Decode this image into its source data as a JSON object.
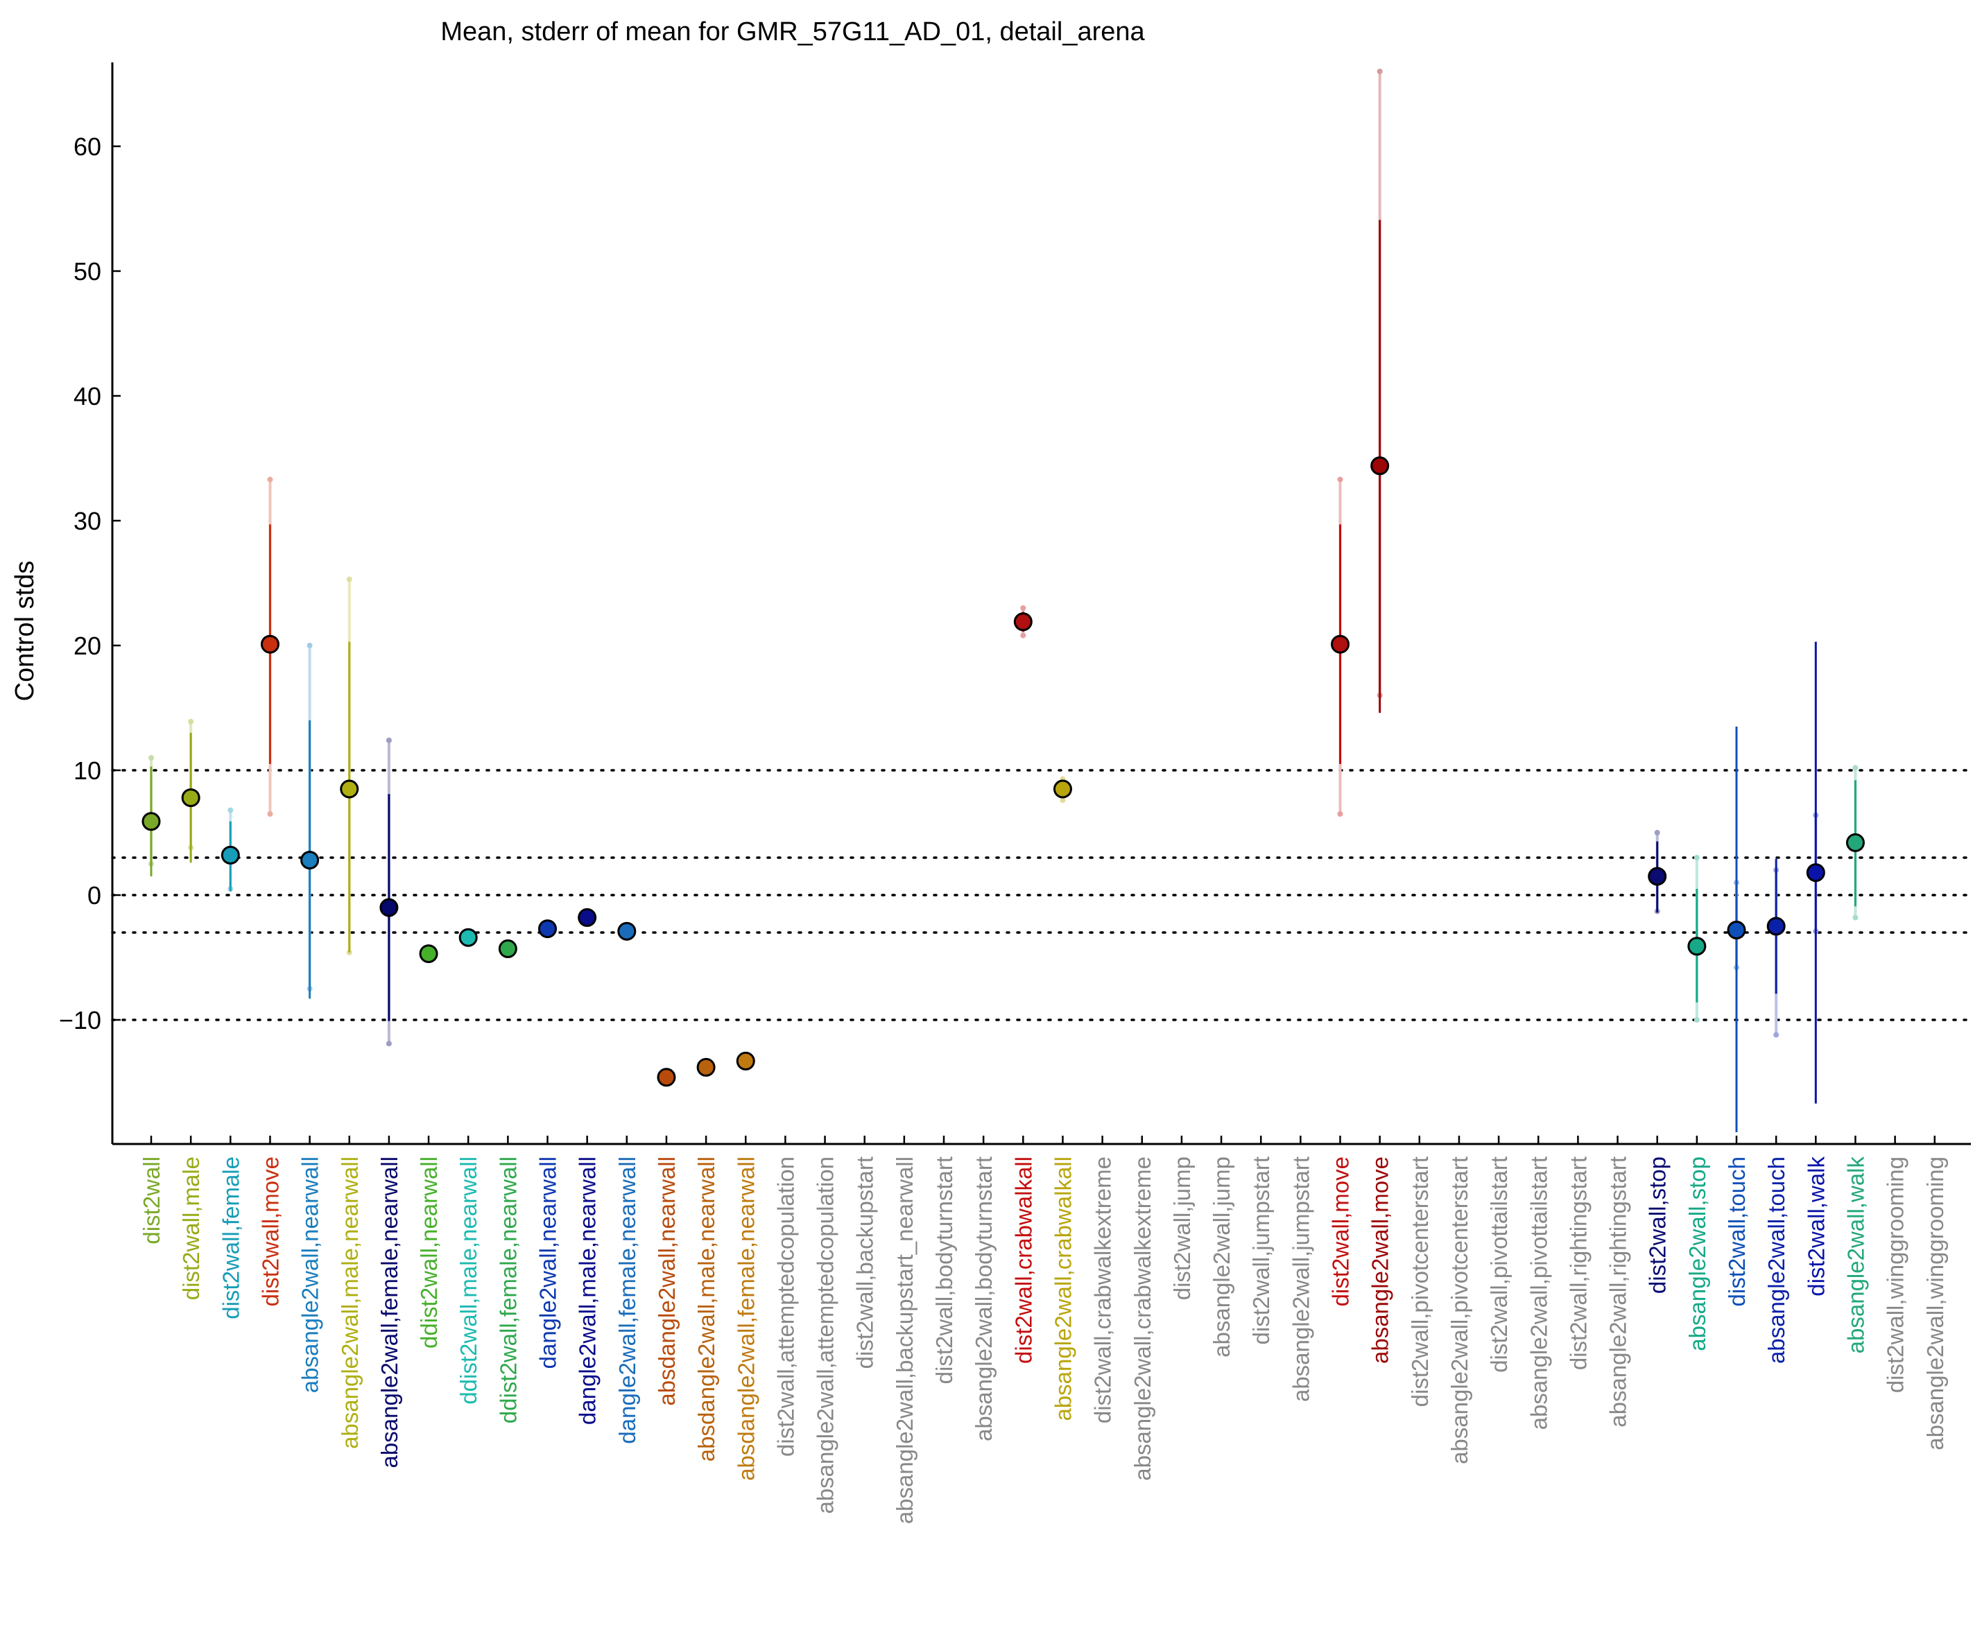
{
  "chart_data": {
    "type": "scatter",
    "title": "Mean, stderr of mean for GMR_57G11_AD_01, detail_arena",
    "xlabel": "",
    "ylabel": "Control stds",
    "ylim": [
      -20,
      67
    ],
    "yticks": [
      -10,
      0,
      10,
      20,
      30,
      40,
      50,
      60
    ],
    "ytick_labels": [
      "−10",
      "0",
      "10",
      "20",
      "30",
      "40",
      "50",
      "60"
    ],
    "reference_lines": [
      -10,
      -3,
      0,
      3,
      10
    ],
    "grid": false,
    "legend": "none",
    "categories": [
      {
        "label": "dist2wall",
        "color": "#7aa828",
        "mean": 5.9,
        "err_lo": 1.5,
        "err_hi": 10.3,
        "range_lo": 2.5,
        "range_hi": 11.0,
        "fill": "#7aa828"
      },
      {
        "label": "dist2wall,male",
        "color": "#99aa17",
        "mean": 7.8,
        "err_lo": 2.6,
        "err_hi": 13.0,
        "range_lo": 3.8,
        "range_hi": 13.9,
        "fill": "#99aa17"
      },
      {
        "label": "dist2wall,female",
        "color": "#179db7",
        "mean": 3.2,
        "err_lo": 0.3,
        "err_hi": 5.9,
        "range_lo": 0.5,
        "range_hi": 6.8,
        "fill": "#179db7"
      },
      {
        "label": "dist2wall,move",
        "color": "#c8300f",
        "mean": 20.1,
        "err_lo": 10.5,
        "err_hi": 29.7,
        "range_lo": 6.5,
        "range_hi": 33.3,
        "fill": "#c8300f"
      },
      {
        "label": "absangle2wall,nearwall",
        "color": "#1a7dbd",
        "mean": 2.8,
        "err_lo": -8.3,
        "err_hi": 14.0,
        "range_lo": -7.5,
        "range_hi": 20.0,
        "fill": "#1a7dbd"
      },
      {
        "label": "absangle2wall,male,nearwall",
        "color": "#afaf12",
        "mean": 8.5,
        "err_lo": -4.6,
        "err_hi": 20.3,
        "range_lo": -4.6,
        "range_hi": 25.3,
        "fill": "#afaf12"
      },
      {
        "label": "absangle2wall,female,nearwall",
        "color": "#07086b",
        "mean": -1.0,
        "err_lo": -10.1,
        "err_hi": 8.1,
        "range_lo": -11.9,
        "range_hi": 12.4,
        "fill": "#07086b"
      },
      {
        "label": "ddist2wall,nearwall",
        "color": "#46b02b",
        "mean": -4.7,
        "err_lo": -4.7,
        "err_hi": -4.7,
        "range_lo": -4.7,
        "range_hi": -4.7,
        "fill": "#46b02b"
      },
      {
        "label": "ddist2wall,male,nearwall",
        "color": "#1cbab0",
        "mean": -3.4,
        "err_lo": -3.4,
        "err_hi": -3.4,
        "range_lo": -3.4,
        "range_hi": -3.4,
        "fill": "#1cbab0"
      },
      {
        "label": "ddist2wall,female,nearwall",
        "color": "#2fa84c",
        "mean": -4.3,
        "err_lo": -4.3,
        "err_hi": -4.3,
        "range_lo": -4.3,
        "range_hi": -4.3,
        "fill": "#2fa84c"
      },
      {
        "label": "dangle2wall,nearwall",
        "color": "#0e38b0",
        "mean": -2.7,
        "err_lo": -2.7,
        "err_hi": -2.7,
        "range_lo": -2.7,
        "range_hi": -2.7,
        "fill": "#0e38b0"
      },
      {
        "label": "dangle2wall,male,nearwall",
        "color": "#0a0c8a",
        "mean": -1.8,
        "err_lo": -1.8,
        "err_hi": -1.8,
        "range_lo": -1.8,
        "range_hi": -1.8,
        "fill": "#0a0c8a"
      },
      {
        "label": "dangle2wall,female,nearwall",
        "color": "#1a6cba",
        "mean": -2.9,
        "err_lo": -2.9,
        "err_hi": -2.9,
        "range_lo": -2.9,
        "range_hi": -2.9,
        "fill": "#1a6cba"
      },
      {
        "label": "absdangle2wall,nearwall",
        "color": "#b84b0c",
        "mean": -14.6,
        "err_lo": -14.6,
        "err_hi": -14.6,
        "range_lo": -14.6,
        "range_hi": -14.6,
        "fill": "#b84b0c"
      },
      {
        "label": "absdangle2wall,male,nearwall",
        "color": "#b8620e",
        "mean": -13.8,
        "err_lo": -13.8,
        "err_hi": -13.8,
        "range_lo": -13.8,
        "range_hi": -13.8,
        "fill": "#b8620e"
      },
      {
        "label": "absdangle2wall,female,nearwall",
        "color": "#bf7b10",
        "mean": -13.3,
        "err_lo": -13.3,
        "err_hi": -13.3,
        "range_lo": -13.3,
        "range_hi": -13.3,
        "fill": "#bf7b10"
      },
      {
        "label": "dist2wall,attemptedcopulation",
        "color": "#888888",
        "mean": null
      },
      {
        "label": "absangle2wall,attemptedcopulation",
        "color": "#888888",
        "mean": null
      },
      {
        "label": "dist2wall,backupstart",
        "color": "#888888",
        "mean": null
      },
      {
        "label": "absangle2wall,backupstart_nearwall",
        "color": "#888888",
        "mean": null
      },
      {
        "label": "dist2wall,bodyturnstart",
        "color": "#888888",
        "mean": null
      },
      {
        "label": "absangle2wall,bodyturnstart",
        "color": "#888888",
        "mean": null
      },
      {
        "label": "dist2wall,crabwalkall",
        "color": "#c40e0e",
        "mean": 21.9,
        "err_lo": 21.1,
        "err_hi": 22.7,
        "range_lo": 20.8,
        "range_hi": 23.0,
        "fill": "#b01010"
      },
      {
        "label": "absangle2wall,crabwalkall",
        "color": "#b8a50c",
        "mean": 8.5,
        "err_lo": 7.9,
        "err_hi": 9.1,
        "range_lo": 7.6,
        "range_hi": 9.3,
        "fill": "#b8a50c"
      },
      {
        "label": "dist2wall,crabwalkextreme",
        "color": "#888888",
        "mean": null
      },
      {
        "label": "absangle2wall,crabwalkextreme",
        "color": "#888888",
        "mean": null
      },
      {
        "label": "dist2wall,jump",
        "color": "#888888",
        "mean": null
      },
      {
        "label": "absangle2wall,jump",
        "color": "#888888",
        "mean": null
      },
      {
        "label": "dist2wall,jumpstart",
        "color": "#888888",
        "mean": null
      },
      {
        "label": "absangle2wall,jumpstart",
        "color": "#888888",
        "mean": null
      },
      {
        "label": "dist2wall,move",
        "color": "#c40e0e",
        "mean": 20.1,
        "err_lo": 10.5,
        "err_hi": 29.7,
        "range_lo": 6.5,
        "range_hi": 33.3,
        "fill": "#b01010"
      },
      {
        "label": "absangle2wall,move",
        "color": "#9c0606",
        "mean": 34.4,
        "err_lo": 14.6,
        "err_hi": 54.1,
        "range_lo": 16.0,
        "range_hi": 66.0,
        "fill": "#9c0606"
      },
      {
        "label": "dist2wall,pivotcenterstart",
        "color": "#888888",
        "mean": null
      },
      {
        "label": "absangle2wall,pivotcenterstart",
        "color": "#888888",
        "mean": null
      },
      {
        "label": "dist2wall,pivottailstart",
        "color": "#888888",
        "mean": null
      },
      {
        "label": "absangle2wall,pivottailstart",
        "color": "#888888",
        "mean": null
      },
      {
        "label": "dist2wall,rightingstart",
        "color": "#888888",
        "mean": null
      },
      {
        "label": "absangle2wall,rightingstart",
        "color": "#888888",
        "mean": null
      },
      {
        "label": "dist2wall,stop",
        "color": "#0a0c72",
        "mean": 1.5,
        "err_lo": -1.4,
        "err_hi": 4.3,
        "range_lo": -1.3,
        "range_hi": 5.0,
        "fill": "#0a0c72"
      },
      {
        "label": "absangle2wall,stop",
        "color": "#17a887",
        "mean": -4.1,
        "err_lo": -8.6,
        "err_hi": 0.5,
        "range_lo": -10.0,
        "range_hi": 3.0,
        "fill": "#17a887"
      },
      {
        "label": "dist2wall,touch",
        "color": "#0e50b8",
        "mean": -2.8,
        "err_lo": -19.0,
        "err_hi": 13.5,
        "range_lo": -5.8,
        "range_hi": 1.0,
        "fill": "#0e50b8"
      },
      {
        "label": "absangle2wall,touch",
        "color": "#0a20a8",
        "mean": -2.5,
        "err_lo": -7.9,
        "err_hi": 2.9,
        "range_lo": -11.2,
        "range_hi": 2.0,
        "fill": "#0a20a8"
      },
      {
        "label": "dist2wall,walk",
        "color": "#0a14a8",
        "mean": 1.8,
        "err_lo": -16.7,
        "err_hi": 20.3,
        "range_lo": -2.9,
        "range_hi": 6.4,
        "fill": "#0a14a8"
      },
      {
        "label": "absangle2wall,walk",
        "color": "#22a878",
        "mean": 4.2,
        "err_lo": -0.9,
        "err_hi": 9.2,
        "range_lo": -1.8,
        "range_hi": 10.2,
        "fill": "#22a878"
      },
      {
        "label": "dist2wall,winggrooming",
        "color": "#888888",
        "mean": null
      },
      {
        "label": "absangle2wall,winggrooming",
        "color": "#888888",
        "mean": null
      }
    ]
  }
}
